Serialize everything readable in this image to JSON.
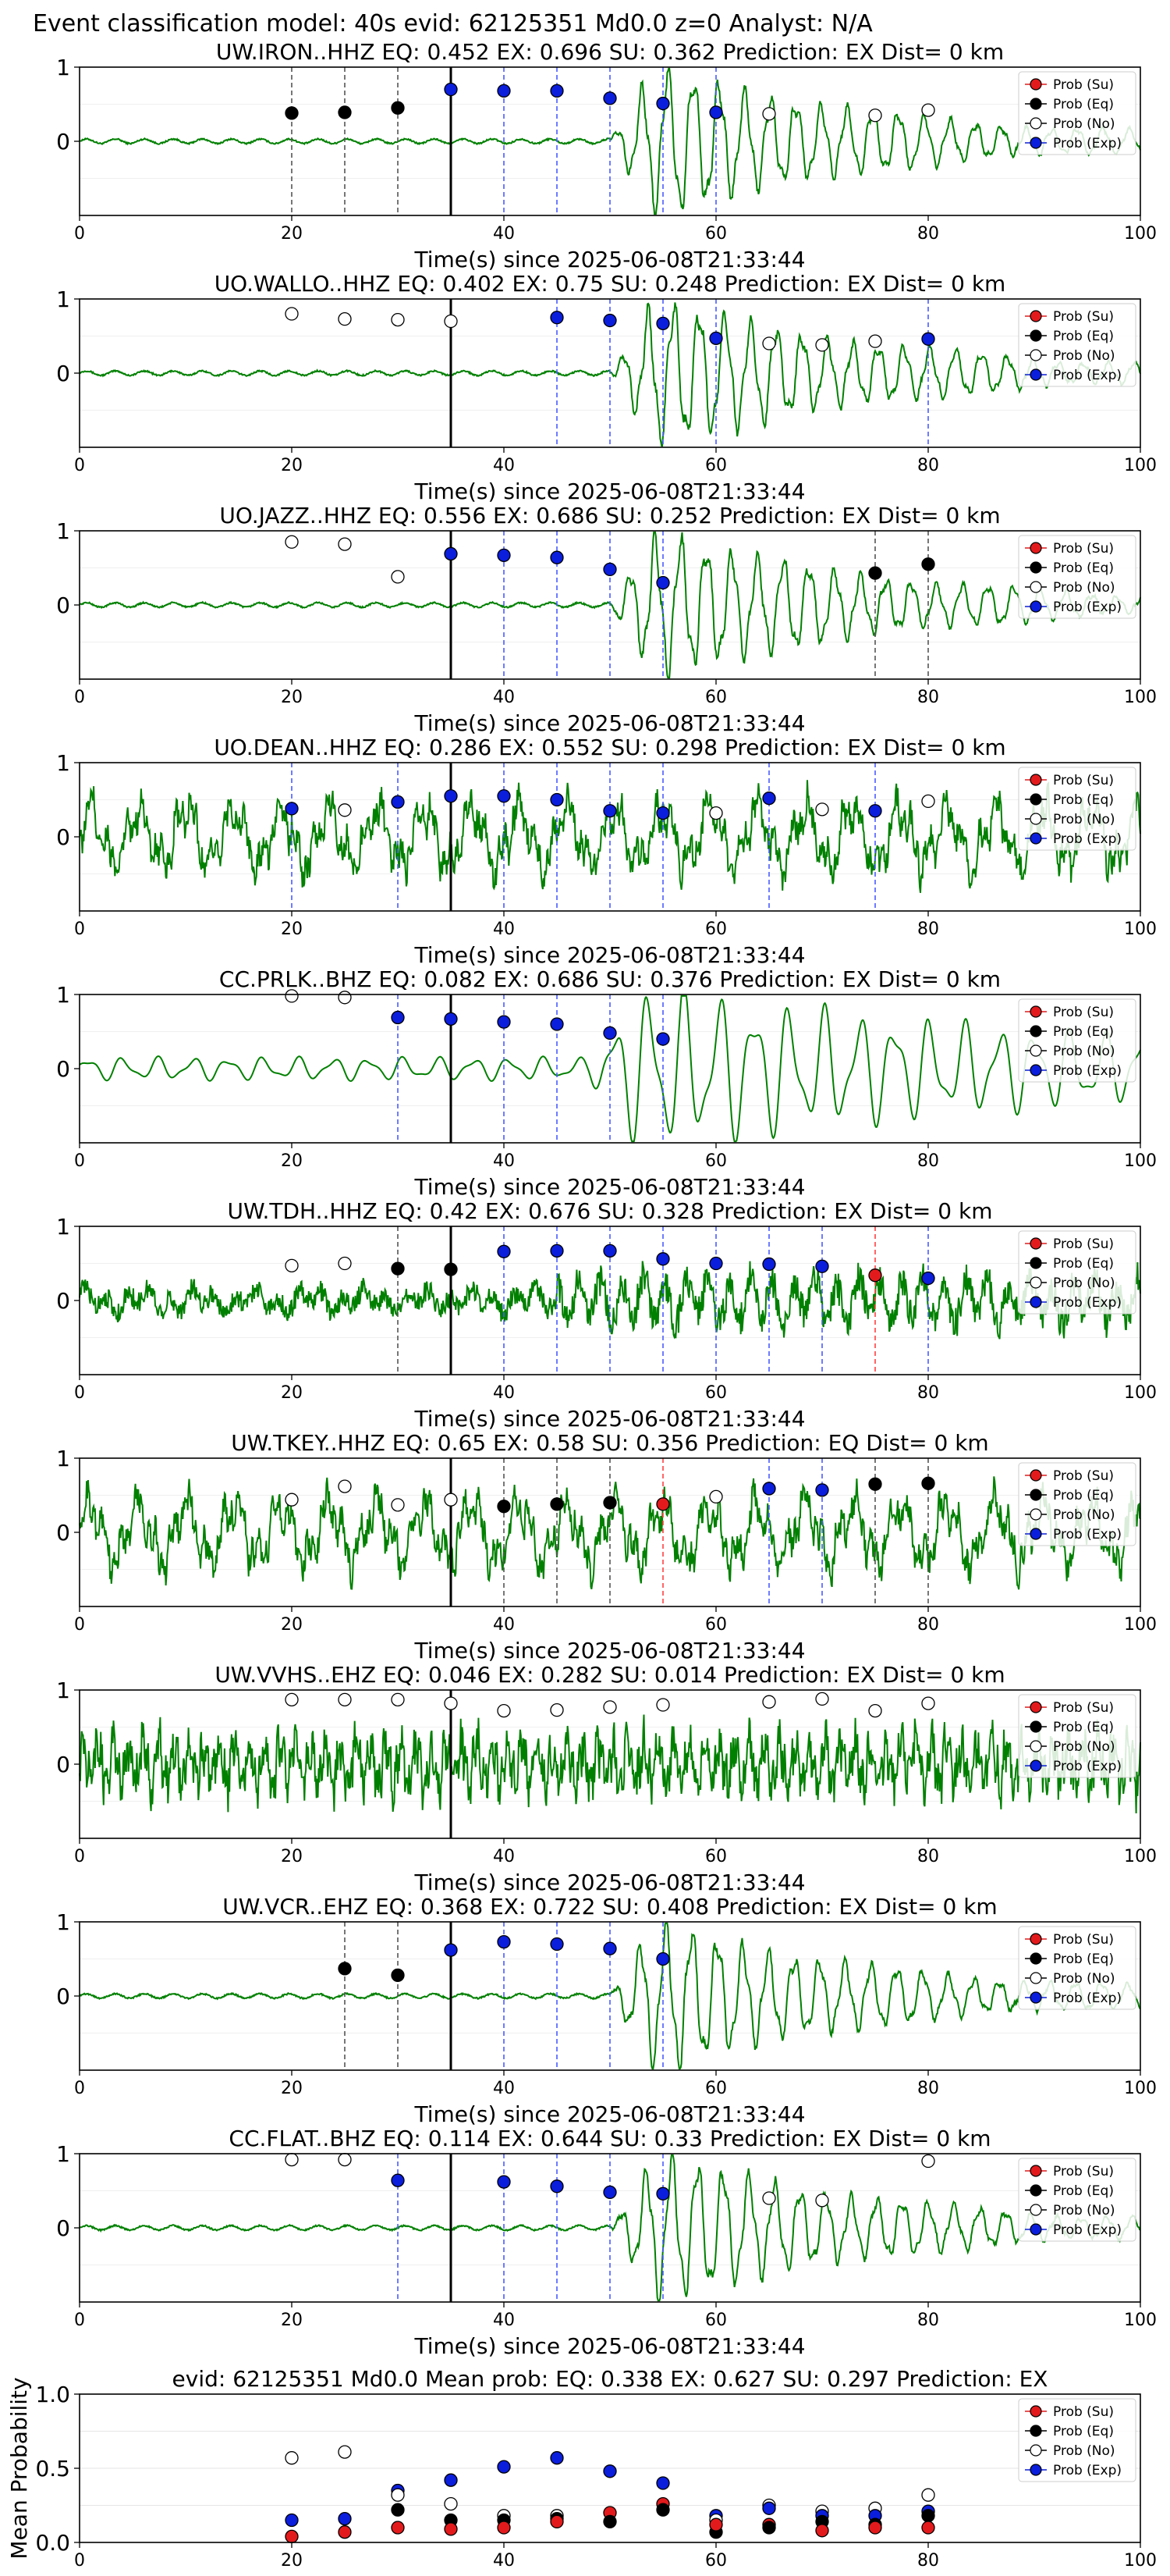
{
  "figure": {
    "suptitle": "Event classification model: 40s evid: 62125351 Md0.0 z=0 Analyst: N/A",
    "x_axis_label": "Time(s) since 2025-06-08T21:33:44",
    "legend": [
      "Prob (Su)",
      "Prob (Eq)",
      "Prob (No)",
      "Prob (Exp)"
    ],
    "colors": {
      "su": "#e31a1c",
      "eq": "#000000",
      "no": "#ffffff",
      "exp": "#0a1edc",
      "waveform": "#008000"
    }
  },
  "chart_data": [
    {
      "type": "scatter",
      "station": "UW.IRON..HHZ",
      "title": "UW.IRON..HHZ   EQ: 0.452  EX: 0.696  SU: 0.362   Prediction: EX    Dist= 0 km",
      "xlim": [
        0,
        100
      ],
      "ylim": [
        -1,
        1
      ],
      "xticks": [
        0,
        20,
        40,
        60,
        80,
        100
      ],
      "yticks": [
        0,
        1
      ],
      "grid": false,
      "legend": "top-right",
      "waveform_amplitude": "low-pre-event",
      "arrival_line": 35,
      "points": [
        {
          "x": 20,
          "y": 0.38,
          "c": "eq"
        },
        {
          "x": 25,
          "y": 0.39,
          "c": "eq"
        },
        {
          "x": 30,
          "y": 0.45,
          "c": "eq"
        },
        {
          "x": 35,
          "y": 0.7,
          "c": "exp"
        },
        {
          "x": 40,
          "y": 0.68,
          "c": "exp"
        },
        {
          "x": 45,
          "y": 0.68,
          "c": "exp"
        },
        {
          "x": 50,
          "y": 0.58,
          "c": "exp"
        },
        {
          "x": 55,
          "y": 0.51,
          "c": "exp"
        },
        {
          "x": 60,
          "y": 0.39,
          "c": "exp"
        },
        {
          "x": 65,
          "y": 0.37,
          "c": "no"
        },
        {
          "x": 75,
          "y": 0.35,
          "c": "no"
        },
        {
          "x": 80,
          "y": 0.42,
          "c": "no"
        }
      ]
    },
    {
      "type": "scatter",
      "station": "UO.WALLO..HHZ",
      "title": "UO.WALLO..HHZ   EQ: 0.402  EX: 0.75  SU: 0.248   Prediction: EX    Dist= 0 km",
      "xlim": [
        0,
        100
      ],
      "ylim": [
        -1,
        1
      ],
      "xticks": [
        0,
        20,
        40,
        60,
        80,
        100
      ],
      "yticks": [
        0,
        1
      ],
      "grid": false,
      "legend": "top-right",
      "waveform_amplitude": "low-pre-event",
      "arrival_line": 35,
      "points": [
        {
          "x": 20,
          "y": 0.8,
          "c": "no"
        },
        {
          "x": 25,
          "y": 0.73,
          "c": "no"
        },
        {
          "x": 30,
          "y": 0.72,
          "c": "no"
        },
        {
          "x": 35,
          "y": 0.7,
          "c": "no"
        },
        {
          "x": 45,
          "y": 0.75,
          "c": "exp"
        },
        {
          "x": 50,
          "y": 0.71,
          "c": "exp"
        },
        {
          "x": 55,
          "y": 0.67,
          "c": "exp"
        },
        {
          "x": 60,
          "y": 0.47,
          "c": "exp"
        },
        {
          "x": 65,
          "y": 0.4,
          "c": "no"
        },
        {
          "x": 70,
          "y": 0.38,
          "c": "no"
        },
        {
          "x": 75,
          "y": 0.43,
          "c": "no"
        },
        {
          "x": 80,
          "y": 0.46,
          "c": "exp"
        }
      ]
    },
    {
      "type": "scatter",
      "station": "UO.JAZZ..HHZ",
      "title": "UO.JAZZ..HHZ   EQ: 0.556  EX: 0.686  SU: 0.252   Prediction: EX    Dist= 0 km",
      "xlim": [
        0,
        100
      ],
      "ylim": [
        -1,
        1
      ],
      "xticks": [
        0,
        20,
        40,
        60,
        80,
        100
      ],
      "yticks": [
        0,
        1
      ],
      "grid": false,
      "legend": "top-right",
      "waveform_amplitude": "low-pre-event",
      "arrival_line": 35,
      "points": [
        {
          "x": 20,
          "y": 0.85,
          "c": "no"
        },
        {
          "x": 25,
          "y": 0.82,
          "c": "no"
        },
        {
          "x": 30,
          "y": 0.38,
          "c": "no"
        },
        {
          "x": 35,
          "y": 0.69,
          "c": "exp"
        },
        {
          "x": 40,
          "y": 0.67,
          "c": "exp"
        },
        {
          "x": 45,
          "y": 0.64,
          "c": "exp"
        },
        {
          "x": 50,
          "y": 0.48,
          "c": "exp"
        },
        {
          "x": 55,
          "y": 0.3,
          "c": "exp"
        },
        {
          "x": 75,
          "y": 0.43,
          "c": "eq"
        },
        {
          "x": 80,
          "y": 0.55,
          "c": "eq"
        }
      ]
    },
    {
      "type": "scatter",
      "station": "UO.DEAN..HHZ",
      "title": "UO.DEAN..HHZ   EQ: 0.286  EX: 0.552  SU: 0.298   Prediction: EX    Dist= 0 km",
      "xlim": [
        0,
        100
      ],
      "ylim": [
        -1,
        1
      ],
      "xticks": [
        0,
        20,
        40,
        60,
        80,
        100
      ],
      "yticks": [
        0,
        1
      ],
      "grid": false,
      "legend": "top-right",
      "waveform_amplitude": "high-noise",
      "arrival_line": 35,
      "points": [
        {
          "x": 20,
          "y": 0.38,
          "c": "exp"
        },
        {
          "x": 25,
          "y": 0.36,
          "c": "no"
        },
        {
          "x": 30,
          "y": 0.47,
          "c": "exp"
        },
        {
          "x": 35,
          "y": 0.55,
          "c": "exp"
        },
        {
          "x": 40,
          "y": 0.55,
          "c": "exp"
        },
        {
          "x": 45,
          "y": 0.5,
          "c": "exp"
        },
        {
          "x": 50,
          "y": 0.35,
          "c": "exp"
        },
        {
          "x": 55,
          "y": 0.32,
          "c": "exp"
        },
        {
          "x": 60,
          "y": 0.32,
          "c": "no"
        },
        {
          "x": 65,
          "y": 0.52,
          "c": "exp"
        },
        {
          "x": 70,
          "y": 0.37,
          "c": "no"
        },
        {
          "x": 75,
          "y": 0.35,
          "c": "exp"
        },
        {
          "x": 80,
          "y": 0.48,
          "c": "no"
        }
      ]
    },
    {
      "type": "scatter",
      "station": "CC.PRLK..BHZ",
      "title": "CC.PRLK..BHZ   EQ: 0.082  EX: 0.686  SU: 0.376   Prediction: EX    Dist= 0 km",
      "xlim": [
        0,
        100
      ],
      "ylim": [
        -1,
        1
      ],
      "xticks": [
        0,
        20,
        40,
        60,
        80,
        100
      ],
      "yticks": [
        0,
        1
      ],
      "grid": false,
      "legend": "top-right",
      "waveform_amplitude": "smooth-long-period",
      "arrival_line": 35,
      "points": [
        {
          "x": 20,
          "y": 0.98,
          "c": "no"
        },
        {
          "x": 25,
          "y": 0.96,
          "c": "no"
        },
        {
          "x": 30,
          "y": 0.69,
          "c": "exp"
        },
        {
          "x": 35,
          "y": 0.67,
          "c": "exp"
        },
        {
          "x": 40,
          "y": 0.63,
          "c": "exp"
        },
        {
          "x": 45,
          "y": 0.6,
          "c": "exp"
        },
        {
          "x": 50,
          "y": 0.48,
          "c": "exp"
        },
        {
          "x": 55,
          "y": 0.4,
          "c": "exp"
        }
      ]
    },
    {
      "type": "scatter",
      "station": "UW.TDH..HHZ",
      "title": "UW.TDH..HHZ   EQ: 0.42  EX: 0.676  SU: 0.328   Prediction: EX    Dist= 0 km",
      "xlim": [
        0,
        100
      ],
      "ylim": [
        -1,
        1
      ],
      "xticks": [
        0,
        20,
        40,
        60,
        80,
        100
      ],
      "yticks": [
        0,
        1
      ],
      "grid": false,
      "legend": "top-right",
      "waveform_amplitude": "medium-noise",
      "arrival_line": 35,
      "points": [
        {
          "x": 20,
          "y": 0.47,
          "c": "no"
        },
        {
          "x": 25,
          "y": 0.5,
          "c": "no"
        },
        {
          "x": 30,
          "y": 0.43,
          "c": "eq"
        },
        {
          "x": 35,
          "y": 0.42,
          "c": "eq"
        },
        {
          "x": 40,
          "y": 0.66,
          "c": "exp"
        },
        {
          "x": 45,
          "y": 0.67,
          "c": "exp"
        },
        {
          "x": 50,
          "y": 0.67,
          "c": "exp"
        },
        {
          "x": 55,
          "y": 0.56,
          "c": "exp"
        },
        {
          "x": 60,
          "y": 0.5,
          "c": "exp"
        },
        {
          "x": 65,
          "y": 0.49,
          "c": "exp"
        },
        {
          "x": 70,
          "y": 0.46,
          "c": "exp"
        },
        {
          "x": 75,
          "y": 0.34,
          "c": "su"
        },
        {
          "x": 80,
          "y": 0.3,
          "c": "exp"
        }
      ]
    },
    {
      "type": "scatter",
      "station": "UW.TKEY..HHZ",
      "title": "UW.TKEY..HHZ   EQ: 0.65  EX: 0.58  SU: 0.356   Prediction: EQ    Dist= 0 km",
      "xlim": [
        0,
        100
      ],
      "ylim": [
        -1,
        1
      ],
      "xticks": [
        0,
        20,
        40,
        60,
        80,
        100
      ],
      "yticks": [
        0,
        1
      ],
      "grid": false,
      "legend": "top-right",
      "waveform_amplitude": "high-noise",
      "arrival_line": 35,
      "points": [
        {
          "x": 20,
          "y": 0.44,
          "c": "no"
        },
        {
          "x": 25,
          "y": 0.62,
          "c": "no"
        },
        {
          "x": 30,
          "y": 0.37,
          "c": "no"
        },
        {
          "x": 35,
          "y": 0.44,
          "c": "no"
        },
        {
          "x": 40,
          "y": 0.35,
          "c": "eq"
        },
        {
          "x": 45,
          "y": 0.38,
          "c": "eq"
        },
        {
          "x": 50,
          "y": 0.4,
          "c": "eq"
        },
        {
          "x": 55,
          "y": 0.38,
          "c": "su"
        },
        {
          "x": 60,
          "y": 0.48,
          "c": "no"
        },
        {
          "x": 65,
          "y": 0.59,
          "c": "exp"
        },
        {
          "x": 70,
          "y": 0.57,
          "c": "exp"
        },
        {
          "x": 75,
          "y": 0.65,
          "c": "eq"
        },
        {
          "x": 80,
          "y": 0.66,
          "c": "eq"
        }
      ]
    },
    {
      "type": "scatter",
      "station": "UW.VVHS..EHZ",
      "title": "UW.VVHS..EHZ   EQ: 0.046  EX: 0.282  SU: 0.014   Prediction: EX    Dist= 0 km",
      "xlim": [
        0,
        100
      ],
      "ylim": [
        -1,
        1
      ],
      "xticks": [
        0,
        20,
        40,
        60,
        80,
        100
      ],
      "yticks": [
        0,
        1
      ],
      "grid": false,
      "legend": "top-right",
      "waveform_amplitude": "full-noise",
      "arrival_line": 35,
      "points": [
        {
          "x": 20,
          "y": 0.87,
          "c": "no"
        },
        {
          "x": 25,
          "y": 0.87,
          "c": "no"
        },
        {
          "x": 30,
          "y": 0.87,
          "c": "no"
        },
        {
          "x": 35,
          "y": 0.82,
          "c": "no"
        },
        {
          "x": 40,
          "y": 0.72,
          "c": "no"
        },
        {
          "x": 45,
          "y": 0.73,
          "c": "no"
        },
        {
          "x": 50,
          "y": 0.77,
          "c": "no"
        },
        {
          "x": 55,
          "y": 0.8,
          "c": "no"
        },
        {
          "x": 65,
          "y": 0.84,
          "c": "no"
        },
        {
          "x": 70,
          "y": 0.88,
          "c": "no"
        },
        {
          "x": 75,
          "y": 0.72,
          "c": "no"
        },
        {
          "x": 80,
          "y": 0.82,
          "c": "no"
        }
      ]
    },
    {
      "type": "scatter",
      "station": "UW.VCR..EHZ",
      "title": "UW.VCR..EHZ   EQ: 0.368  EX: 0.722  SU: 0.408   Prediction: EX    Dist= 0 km",
      "xlim": [
        0,
        100
      ],
      "ylim": [
        -1,
        1
      ],
      "xticks": [
        0,
        20,
        40,
        60,
        80,
        100
      ],
      "yticks": [
        0,
        1
      ],
      "grid": false,
      "legend": "top-right",
      "waveform_amplitude": "low-pre-event",
      "arrival_line": 35,
      "points": [
        {
          "x": 25,
          "y": 0.37,
          "c": "eq"
        },
        {
          "x": 30,
          "y": 0.28,
          "c": "eq"
        },
        {
          "x": 35,
          "y": 0.62,
          "c": "exp"
        },
        {
          "x": 40,
          "y": 0.73,
          "c": "exp"
        },
        {
          "x": 45,
          "y": 0.7,
          "c": "exp"
        },
        {
          "x": 50,
          "y": 0.64,
          "c": "exp"
        },
        {
          "x": 55,
          "y": 0.5,
          "c": "exp"
        }
      ]
    },
    {
      "type": "scatter",
      "station": "CC.FLAT..BHZ",
      "title": "CC.FLAT..BHZ   EQ: 0.114  EX: 0.644  SU: 0.33   Prediction: EX    Dist= 0 km",
      "xlim": [
        0,
        100
      ],
      "ylim": [
        -1,
        1
      ],
      "xticks": [
        0,
        20,
        40,
        60,
        80,
        100
      ],
      "yticks": [
        0,
        1
      ],
      "grid": false,
      "legend": "top-right",
      "waveform_amplitude": "low-pre-event",
      "arrival_line": 35,
      "points": [
        {
          "x": 20,
          "y": 0.92,
          "c": "no"
        },
        {
          "x": 25,
          "y": 0.92,
          "c": "no"
        },
        {
          "x": 30,
          "y": 0.64,
          "c": "exp"
        },
        {
          "x": 40,
          "y": 0.62,
          "c": "exp"
        },
        {
          "x": 45,
          "y": 0.56,
          "c": "exp"
        },
        {
          "x": 50,
          "y": 0.48,
          "c": "exp"
        },
        {
          "x": 55,
          "y": 0.46,
          "c": "exp"
        },
        {
          "x": 65,
          "y": 0.4,
          "c": "no"
        },
        {
          "x": 70,
          "y": 0.37,
          "c": "no"
        },
        {
          "x": 80,
          "y": 0.9,
          "c": "no"
        }
      ]
    },
    {
      "type": "scatter",
      "station": "mean",
      "title": "evid: 62125351  Md0.0   Mean prob:   EQ: 0.338  EX: 0.627  SU: 0.297   Prediction: EX",
      "ylabel": "Mean Probability",
      "xlim": [
        0,
        100
      ],
      "ylim": [
        0,
        1
      ],
      "xticks": [
        0,
        20,
        40,
        60,
        80,
        100
      ],
      "yticks": [
        0,
        0.5,
        1.0
      ],
      "ytick_labels": [
        "0.0",
        "0.5",
        "1.0"
      ],
      "grid": true,
      "legend": "top-right",
      "points": [
        {
          "x": 20,
          "y": 0.57,
          "c": "no"
        },
        {
          "x": 20,
          "y": 0.15,
          "c": "exp"
        },
        {
          "x": 20,
          "y": 0.04,
          "c": "su"
        },
        {
          "x": 25,
          "y": 0.61,
          "c": "no"
        },
        {
          "x": 25,
          "y": 0.16,
          "c": "exp"
        },
        {
          "x": 25,
          "y": 0.07,
          "c": "su"
        },
        {
          "x": 30,
          "y": 0.35,
          "c": "exp"
        },
        {
          "x": 30,
          "y": 0.32,
          "c": "no"
        },
        {
          "x": 30,
          "y": 0.22,
          "c": "eq"
        },
        {
          "x": 30,
          "y": 0.1,
          "c": "su"
        },
        {
          "x": 35,
          "y": 0.42,
          "c": "exp"
        },
        {
          "x": 35,
          "y": 0.26,
          "c": "no"
        },
        {
          "x": 35,
          "y": 0.15,
          "c": "eq"
        },
        {
          "x": 35,
          "y": 0.09,
          "c": "su"
        },
        {
          "x": 40,
          "y": 0.51,
          "c": "exp"
        },
        {
          "x": 40,
          "y": 0.18,
          "c": "no"
        },
        {
          "x": 40,
          "y": 0.15,
          "c": "eq"
        },
        {
          "x": 40,
          "y": 0.1,
          "c": "su"
        },
        {
          "x": 45,
          "y": 0.57,
          "c": "exp"
        },
        {
          "x": 45,
          "y": 0.18,
          "c": "no"
        },
        {
          "x": 45,
          "y": 0.16,
          "c": "eq"
        },
        {
          "x": 45,
          "y": 0.14,
          "c": "su"
        },
        {
          "x": 50,
          "y": 0.48,
          "c": "exp"
        },
        {
          "x": 50,
          "y": 0.2,
          "c": "su"
        },
        {
          "x": 50,
          "y": 0.14,
          "c": "eq"
        },
        {
          "x": 55,
          "y": 0.4,
          "c": "exp"
        },
        {
          "x": 55,
          "y": 0.26,
          "c": "su"
        },
        {
          "x": 55,
          "y": 0.22,
          "c": "eq"
        },
        {
          "x": 60,
          "y": 0.18,
          "c": "exp"
        },
        {
          "x": 60,
          "y": 0.15,
          "c": "no"
        },
        {
          "x": 60,
          "y": 0.07,
          "c": "eq"
        },
        {
          "x": 60,
          "y": 0.12,
          "c": "su"
        },
        {
          "x": 65,
          "y": 0.25,
          "c": "no"
        },
        {
          "x": 65,
          "y": 0.23,
          "c": "exp"
        },
        {
          "x": 65,
          "y": 0.12,
          "c": "su"
        },
        {
          "x": 65,
          "y": 0.1,
          "c": "eq"
        },
        {
          "x": 70,
          "y": 0.21,
          "c": "no"
        },
        {
          "x": 70,
          "y": 0.18,
          "c": "exp"
        },
        {
          "x": 70,
          "y": 0.14,
          "c": "eq"
        },
        {
          "x": 70,
          "y": 0.08,
          "c": "su"
        },
        {
          "x": 75,
          "y": 0.23,
          "c": "no"
        },
        {
          "x": 75,
          "y": 0.18,
          "c": "exp"
        },
        {
          "x": 75,
          "y": 0.12,
          "c": "eq"
        },
        {
          "x": 75,
          "y": 0.1,
          "c": "su"
        },
        {
          "x": 80,
          "y": 0.32,
          "c": "no"
        },
        {
          "x": 80,
          "y": 0.21,
          "c": "exp"
        },
        {
          "x": 80,
          "y": 0.18,
          "c": "eq"
        },
        {
          "x": 80,
          "y": 0.1,
          "c": "su"
        }
      ]
    }
  ]
}
